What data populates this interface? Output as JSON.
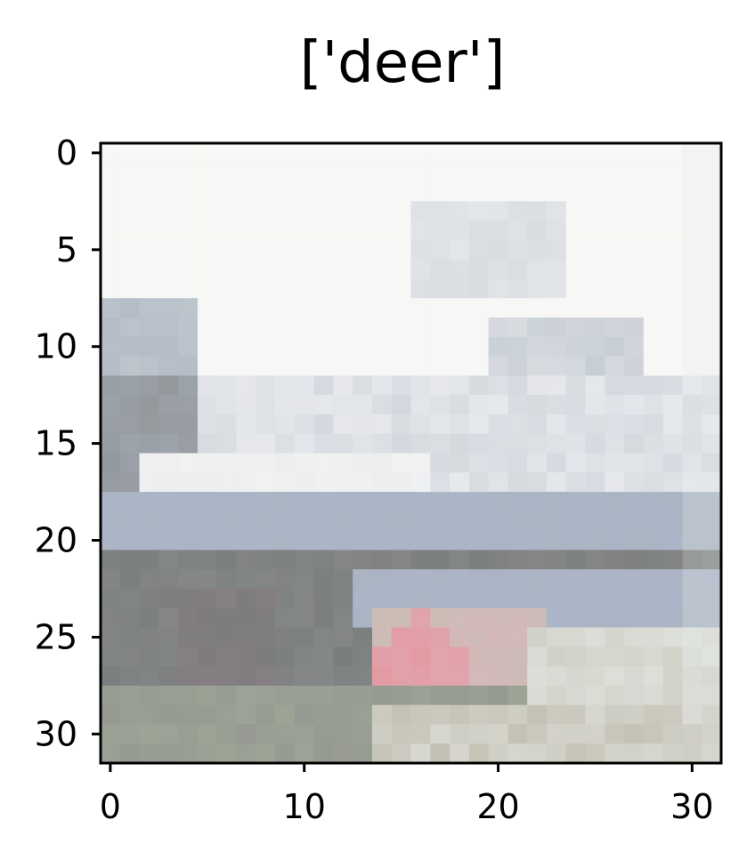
{
  "chart_data": {
    "type": "heatmap",
    "title": "['deer']",
    "xlabel": "",
    "ylabel": "",
    "xlim": [
      -0.5,
      31.5
    ],
    "ylim": [
      31.5,
      -0.5
    ],
    "grid": false,
    "x_ticks": [
      0,
      10,
      20,
      30
    ],
    "y_ticks": [
      0,
      5,
      10,
      15,
      20,
      25,
      30
    ],
    "x_tick_labels": [
      "0",
      "10",
      "20",
      "30"
    ],
    "y_tick_labels": [
      "0",
      "5",
      "10",
      "15",
      "20",
      "25",
      "30"
    ],
    "image_rows": 32,
    "image_cols": 32,
    "palette": {
      "sky": "#f7f7f5",
      "haze": "#e6e8ec",
      "cloud": "#d3d8de",
      "steel": "#a9b3be",
      "blue_gray": "#aeb6cd",
      "gray": "#888a8b",
      "dark_gray": "#767979",
      "mauve": "#8e8288",
      "pink": "#e39aa2",
      "light_pink": "#deb3bd",
      "sage": "#a3aa98",
      "beige": "#c4c0b3",
      "pale": "#e6ebe8"
    }
  }
}
